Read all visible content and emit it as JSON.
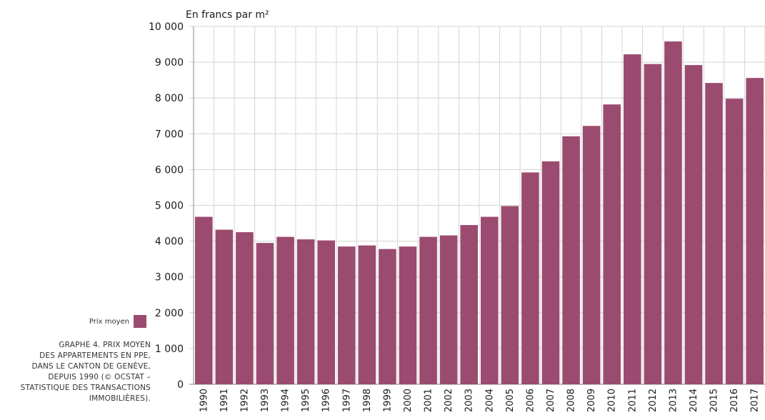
{
  "colors": {
    "bar": "#9b4b6f",
    "grid": "#d4d4d4",
    "axis": "#8a8a8a"
  },
  "legend": {
    "label": "Prix moyen"
  },
  "caption": {
    "lines": [
      "GRAPHE 4. PRIX MOYEN",
      "DES APPARTEMENTS EN PPE,",
      "DANS LE CANTON DE GENÈVE,",
      "DEPUIS 1990 (© OCSTAT –",
      "STATISTIQUE DES TRANSACTIONS",
      "IMMOBILIÈRES)."
    ]
  },
  "chart_data": {
    "type": "bar",
    "title": "",
    "ylabel": "En francs par m²",
    "xlabel": "",
    "ylim": [
      0,
      10000
    ],
    "yticks": [
      0,
      1000,
      2000,
      3000,
      4000,
      5000,
      6000,
      7000,
      8000,
      9000,
      10000
    ],
    "ytick_labels": [
      "0",
      "1 000",
      "2 000",
      "3 000",
      "4 000",
      "5 000",
      "6 000",
      "7 000",
      "8 000",
      "9 000",
      "10 000"
    ],
    "grid": true,
    "legend_position": "left",
    "categories": [
      "1990",
      "1991",
      "1992",
      "1993",
      "1994",
      "1995",
      "1996",
      "1997",
      "1998",
      "1999",
      "2000",
      "2001",
      "2002",
      "2003",
      "2004",
      "2005",
      "2006",
      "2007",
      "2008",
      "2009",
      "2010",
      "2011",
      "2012",
      "2013",
      "2014",
      "2015",
      "2016",
      "2017"
    ],
    "series": [
      {
        "name": "Prix moyen",
        "values": [
          4680,
          4320,
          4250,
          3950,
          4120,
          4050,
          4020,
          3850,
          3880,
          3780,
          3850,
          4120,
          4160,
          4450,
          4680,
          4980,
          5920,
          6230,
          6930,
          7220,
          7820,
          9220,
          8950,
          9580,
          8920,
          8420,
          7980,
          8560
        ]
      }
    ]
  }
}
